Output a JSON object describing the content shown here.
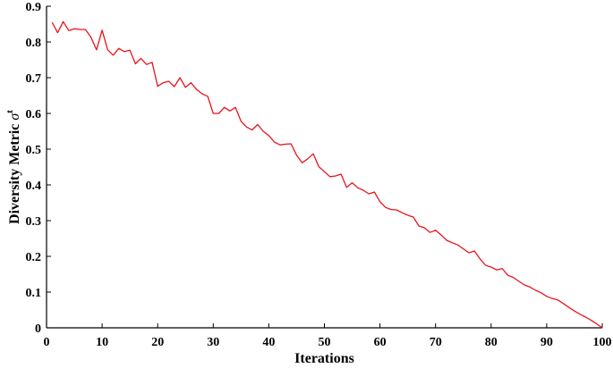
{
  "chart_data": {
    "type": "line",
    "title": "",
    "xlabel": "Iterations",
    "ylabel": "Diversity Metric",
    "ylabel_symbol": "σ",
    "ylabel_superscript": "t",
    "xlim": [
      0,
      100
    ],
    "ylim": [
      0,
      0.9
    ],
    "xticks": [
      "0",
      "10",
      "20",
      "30",
      "40",
      "50",
      "60",
      "70",
      "80",
      "90",
      "100"
    ],
    "yticks": [
      "0",
      "0.1",
      "0.2",
      "0.3",
      "0.4",
      "0.5",
      "0.6",
      "0.7",
      "0.8",
      "0.9"
    ],
    "grid": false,
    "line_color": "#e8151b",
    "series": [
      {
        "x": [
          1,
          2,
          3,
          4,
          5,
          6,
          7,
          8,
          9,
          10,
          11,
          12,
          13,
          14,
          15,
          16,
          17,
          18,
          19,
          20,
          21,
          22,
          23,
          24,
          25,
          26,
          27,
          28,
          29,
          30,
          31,
          32,
          33,
          34,
          35,
          36,
          37,
          38,
          39,
          40,
          41,
          42,
          43,
          44,
          45,
          46,
          47,
          48,
          49,
          50,
          51,
          52,
          53,
          54,
          55,
          56,
          57,
          58,
          59,
          60,
          61,
          62,
          63,
          64,
          65,
          66,
          67,
          68,
          69,
          70,
          71,
          72,
          73,
          74,
          75,
          76,
          77,
          78,
          79,
          80,
          81,
          82,
          83,
          84,
          85,
          86,
          87,
          88,
          89,
          90,
          91,
          92,
          93,
          94,
          95,
          96,
          97,
          98,
          99,
          100
        ],
        "values": [
          0.855,
          0.826,
          0.857,
          0.832,
          0.837,
          0.835,
          0.835,
          0.813,
          0.778,
          0.833,
          0.778,
          0.763,
          0.782,
          0.773,
          0.777,
          0.739,
          0.754,
          0.737,
          0.743,
          0.676,
          0.686,
          0.69,
          0.675,
          0.7,
          0.673,
          0.686,
          0.667,
          0.655,
          0.648,
          0.6,
          0.6,
          0.617,
          0.607,
          0.617,
          0.578,
          0.562,
          0.554,
          0.569,
          0.55,
          0.538,
          0.52,
          0.512,
          0.514,
          0.515,
          0.483,
          0.462,
          0.473,
          0.487,
          0.451,
          0.437,
          0.423,
          0.425,
          0.43,
          0.393,
          0.406,
          0.392,
          0.385,
          0.375,
          0.38,
          0.353,
          0.337,
          0.331,
          0.33,
          0.322,
          0.315,
          0.31,
          0.285,
          0.28,
          0.267,
          0.273,
          0.26,
          0.245,
          0.238,
          0.232,
          0.221,
          0.21,
          0.215,
          0.193,
          0.175,
          0.17,
          0.162,
          0.166,
          0.147,
          0.141,
          0.13,
          0.12,
          0.114,
          0.105,
          0.098,
          0.088,
          0.082,
          0.078,
          0.068,
          0.057,
          0.047,
          0.038,
          0.03,
          0.021,
          0.011,
          0.0
        ]
      }
    ]
  }
}
